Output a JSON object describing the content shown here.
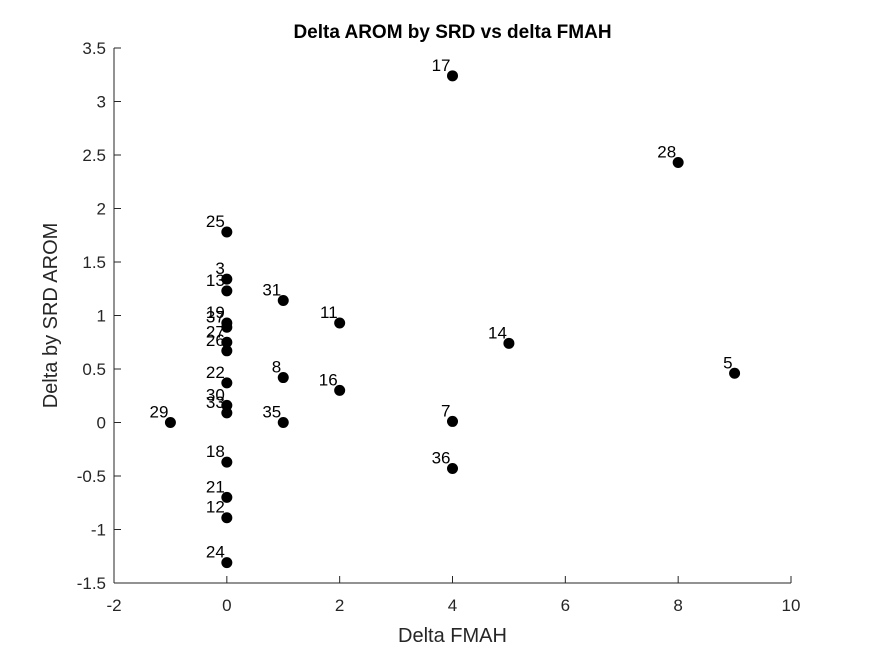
{
  "chart_data": {
    "type": "scatter",
    "title": "Delta AROM by SRD vs delta FMAH",
    "xlabel": "Delta FMAH",
    "ylabel": "Delta by SRD AROM",
    "xlim": [
      -2,
      10
    ],
    "ylim": [
      -1.5,
      3.5
    ],
    "xticks": [
      "-2",
      "0",
      "2",
      "4",
      "6",
      "8",
      "10"
    ],
    "yticks": [
      "3.5",
      "3",
      "2.5",
      "2",
      "1.5",
      "1",
      "0.5",
      "0",
      "-0.5",
      "-1",
      "-1.5"
    ],
    "xtick_values": [
      -2,
      0,
      2,
      4,
      6,
      8,
      10
    ],
    "ytick_values": [
      3.5,
      3,
      2.5,
      2,
      1.5,
      1,
      0.5,
      0,
      -0.5,
      -1,
      -1.5
    ],
    "grid": false,
    "marker_color": "#000000",
    "points": [
      {
        "label": "17",
        "x": 4,
        "y": 3.24
      },
      {
        "label": "28",
        "x": 8,
        "y": 2.43
      },
      {
        "label": "25",
        "x": 0,
        "y": 1.78
      },
      {
        "label": "3",
        "x": 0,
        "y": 1.34
      },
      {
        "label": "13",
        "x": 0,
        "y": 1.23
      },
      {
        "label": "31",
        "x": 1,
        "y": 1.14
      },
      {
        "label": "11",
        "x": 2,
        "y": 0.93
      },
      {
        "label": "19",
        "x": 0,
        "y": 0.93
      },
      {
        "label": "37",
        "x": 0,
        "y": 0.89
      },
      {
        "label": "14",
        "x": 5,
        "y": 0.74
      },
      {
        "label": "27",
        "x": 0,
        "y": 0.75
      },
      {
        "label": "26",
        "x": 0,
        "y": 0.67
      },
      {
        "label": "5",
        "x": 9,
        "y": 0.46
      },
      {
        "label": "8",
        "x": 1,
        "y": 0.42
      },
      {
        "label": "22",
        "x": 0,
        "y": 0.37
      },
      {
        "label": "16",
        "x": 2,
        "y": 0.3
      },
      {
        "label": "30",
        "x": 0,
        "y": 0.16
      },
      {
        "label": "33",
        "x": 0,
        "y": 0.09
      },
      {
        "label": "29",
        "x": -1,
        "y": 0.0
      },
      {
        "label": "35",
        "x": 1,
        "y": 0.0
      },
      {
        "label": "7",
        "x": 4,
        "y": 0.01
      },
      {
        "label": "18",
        "x": 0,
        "y": -0.37
      },
      {
        "label": "36",
        "x": 4,
        "y": -0.43
      },
      {
        "label": "21",
        "x": 0,
        "y": -0.7
      },
      {
        "label": "12",
        "x": 0,
        "y": -0.89
      },
      {
        "label": "24",
        "x": 0,
        "y": -1.31
      }
    ]
  }
}
